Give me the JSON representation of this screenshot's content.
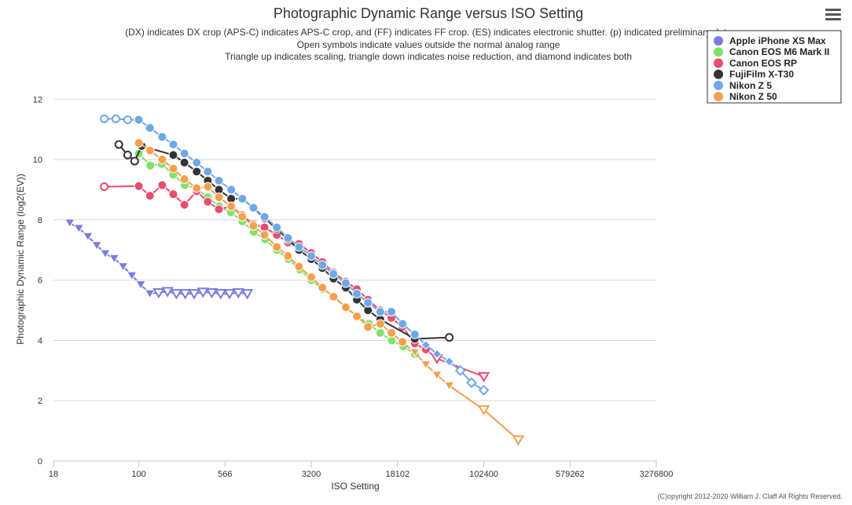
{
  "chart_data": {
    "type": "line",
    "title": "Photographic Dynamic Range versus ISO Setting",
    "subtitle": [
      "(DX) indicates DX crop (APS-C) indicates APS-C crop, and (FF) indicates FF crop. (ES) indicates electronic shutter. (p) indicated preliminary data",
      "Open symbols indicate values outside the normal analog range",
      "Triangle up indicates scaling, triangle down indicates noise reduction, and diamond indicates both"
    ],
    "xlabel": "ISO Setting",
    "ylabel": "Photographic Dynamic Range (log2(EV))",
    "x_scale": "log",
    "xlim": [
      18,
      3276800
    ],
    "ylim": [
      0,
      13
    ],
    "x_ticks": [
      "18",
      "100",
      "566",
      "3200",
      "18102",
      "102400",
      "579262",
      "3276800"
    ],
    "y_ticks": [
      0,
      2,
      4,
      6,
      8,
      10,
      12
    ],
    "grid": true,
    "legend_position": "top-right",
    "credit": "(C)opyright 2012-2020 William J. Claff All Rights Reserved.",
    "series": [
      {
        "name": "Apple iPhone XS Max",
        "color": "#7b7bdf",
        "points": [
          {
            "x": 25,
            "y": 7.9,
            "m": "td"
          },
          {
            "x": 30,
            "y": 7.72,
            "m": "td"
          },
          {
            "x": 36,
            "y": 7.45,
            "m": "td"
          },
          {
            "x": 43,
            "y": 7.15,
            "m": "td"
          },
          {
            "x": 51,
            "y": 6.88,
            "m": "td"
          },
          {
            "x": 61,
            "y": 6.72,
            "m": "td"
          },
          {
            "x": 73,
            "y": 6.45,
            "m": "td"
          },
          {
            "x": 87,
            "y": 6.15,
            "m": "td"
          },
          {
            "x": 104,
            "y": 5.85,
            "m": "td"
          },
          {
            "x": 125,
            "y": 5.55,
            "m": "td"
          },
          {
            "x": 149,
            "y": 5.58,
            "m": "tdo"
          },
          {
            "x": 178,
            "y": 5.62,
            "m": "tdo"
          },
          {
            "x": 213,
            "y": 5.55,
            "m": "tdo"
          },
          {
            "x": 254,
            "y": 5.55,
            "m": "tdo"
          },
          {
            "x": 304,
            "y": 5.55,
            "m": "tdo"
          },
          {
            "x": 363,
            "y": 5.6,
            "m": "tdo"
          },
          {
            "x": 433,
            "y": 5.58,
            "m": "tdo"
          },
          {
            "x": 518,
            "y": 5.55,
            "m": "tdo"
          },
          {
            "x": 619,
            "y": 5.55,
            "m": "tdo"
          },
          {
            "x": 739,
            "y": 5.58,
            "m": "tdo"
          },
          {
            "x": 883,
            "y": 5.55,
            "m": "tdo"
          }
        ]
      },
      {
        "name": "Canon EOS M6 Mark II",
        "color": "#80e268",
        "points": [
          {
            "x": 100,
            "y": 10.2,
            "m": "c"
          },
          {
            "x": 126,
            "y": 9.8,
            "m": "c"
          },
          {
            "x": 159,
            "y": 9.85,
            "m": "c"
          },
          {
            "x": 200,
            "y": 9.5,
            "m": "c"
          },
          {
            "x": 252,
            "y": 9.15,
            "m": "c"
          },
          {
            "x": 317,
            "y": 9.05,
            "m": "c"
          },
          {
            "x": 400,
            "y": 8.75,
            "m": "c"
          },
          {
            "x": 504,
            "y": 8.45,
            "m": "c"
          },
          {
            "x": 635,
            "y": 8.25,
            "m": "c"
          },
          {
            "x": 800,
            "y": 7.95,
            "m": "c"
          },
          {
            "x": 1008,
            "y": 7.6,
            "m": "c"
          },
          {
            "x": 1270,
            "y": 7.35,
            "m": "c"
          },
          {
            "x": 1600,
            "y": 7.0,
            "m": "c"
          },
          {
            "x": 2016,
            "y": 6.7,
            "m": "c"
          },
          {
            "x": 2540,
            "y": 6.35,
            "m": "c"
          },
          {
            "x": 3200,
            "y": 6.0,
            "m": "c"
          },
          {
            "x": 4032,
            "y": 5.7,
            "m": "c"
          },
          {
            "x": 5080,
            "y": 5.45,
            "m": "c"
          },
          {
            "x": 6400,
            "y": 5.1,
            "m": "c"
          },
          {
            "x": 8063,
            "y": 4.8,
            "m": "c"
          },
          {
            "x": 10159,
            "y": 4.55,
            "m": "c"
          },
          {
            "x": 12800,
            "y": 4.25,
            "m": "c"
          },
          {
            "x": 16127,
            "y": 4.0,
            "m": "c"
          },
          {
            "x": 20319,
            "y": 3.8,
            "m": "c"
          },
          {
            "x": 25600,
            "y": 3.55,
            "m": "c"
          }
        ]
      },
      {
        "name": "Canon EOS RP",
        "color": "#e84c6e",
        "points": [
          {
            "x": 50,
            "y": 9.1,
            "m": "co"
          },
          {
            "x": 100,
            "y": 9.12,
            "m": "c"
          },
          {
            "x": 125,
            "y": 8.8,
            "m": "c"
          },
          {
            "x": 160,
            "y": 9.15,
            "m": "c"
          },
          {
            "x": 200,
            "y": 8.85,
            "m": "c"
          },
          {
            "x": 250,
            "y": 8.5,
            "m": "c"
          },
          {
            "x": 320,
            "y": 8.95,
            "m": "c"
          },
          {
            "x": 400,
            "y": 8.6,
            "m": "c"
          },
          {
            "x": 500,
            "y": 8.35,
            "m": "c"
          },
          {
            "x": 640,
            "y": 8.45,
            "m": "c"
          },
          {
            "x": 800,
            "y": 8.15,
            "m": "c"
          },
          {
            "x": 1000,
            "y": 7.85,
            "m": "c"
          },
          {
            "x": 1250,
            "y": 7.75,
            "m": "c"
          },
          {
            "x": 1600,
            "y": 7.5,
            "m": "c"
          },
          {
            "x": 2000,
            "y": 7.25,
            "m": "c"
          },
          {
            "x": 2500,
            "y": 7.2,
            "m": "c"
          },
          {
            "x": 3200,
            "y": 6.9,
            "m": "c"
          },
          {
            "x": 4000,
            "y": 6.6,
            "m": "c"
          },
          {
            "x": 5000,
            "y": 6.25,
            "m": "c"
          },
          {
            "x": 6400,
            "y": 5.95,
            "m": "c"
          },
          {
            "x": 8000,
            "y": 5.7,
            "m": "c"
          },
          {
            "x": 10000,
            "y": 5.35,
            "m": "c"
          },
          {
            "x": 12800,
            "y": 5.0,
            "m": "c"
          },
          {
            "x": 16000,
            "y": 4.75,
            "m": "c"
          },
          {
            "x": 20000,
            "y": 4.45,
            "m": "c"
          },
          {
            "x": 25600,
            "y": 3.9,
            "m": "c"
          },
          {
            "x": 32000,
            "y": 3.7,
            "m": "c"
          },
          {
            "x": 40000,
            "y": 3.4,
            "m": "tdo"
          },
          {
            "x": 102400,
            "y": 2.8,
            "m": "tdo"
          }
        ]
      },
      {
        "name": "FujiFilm X-T30",
        "color": "#333333",
        "points": [
          {
            "x": 67,
            "y": 10.5,
            "m": "co"
          },
          {
            "x": 80,
            "y": 10.15,
            "m": "co"
          },
          {
            "x": 92,
            "y": 9.95,
            "m": "co"
          },
          {
            "x": 106,
            "y": 10.45,
            "m": "c"
          },
          {
            "x": 200,
            "y": 10.15,
            "m": "c"
          },
          {
            "x": 250,
            "y": 9.9,
            "m": "c"
          },
          {
            "x": 320,
            "y": 9.6,
            "m": "c"
          },
          {
            "x": 400,
            "y": 9.3,
            "m": "c"
          },
          {
            "x": 500,
            "y": 9.0,
            "m": "c"
          },
          {
            "x": 640,
            "y": 8.7,
            "m": "c"
          },
          {
            "x": 800,
            "y": 8.7,
            "m": "c"
          },
          {
            "x": 1000,
            "y": 8.4,
            "m": "c"
          },
          {
            "x": 1250,
            "y": 8.05,
            "m": "c"
          },
          {
            "x": 1600,
            "y": 7.7,
            "m": "c"
          },
          {
            "x": 2000,
            "y": 7.35,
            "m": "c"
          },
          {
            "x": 2500,
            "y": 7.0,
            "m": "c"
          },
          {
            "x": 3200,
            "y": 6.7,
            "m": "c"
          },
          {
            "x": 4000,
            "y": 6.4,
            "m": "c"
          },
          {
            "x": 5000,
            "y": 6.05,
            "m": "c"
          },
          {
            "x": 6400,
            "y": 5.75,
            "m": "c"
          },
          {
            "x": 8000,
            "y": 5.35,
            "m": "c"
          },
          {
            "x": 10000,
            "y": 5.0,
            "m": "c"
          },
          {
            "x": 12800,
            "y": 4.7,
            "m": "c"
          },
          {
            "x": 25600,
            "y": 4.05,
            "m": "c"
          },
          {
            "x": 51200,
            "y": 4.1,
            "m": "co"
          }
        ]
      },
      {
        "name": "Nikon Z 5",
        "color": "#6ea8e6",
        "points": [
          {
            "x": 50,
            "y": 11.35,
            "m": "co"
          },
          {
            "x": 63,
            "y": 11.35,
            "m": "co"
          },
          {
            "x": 80,
            "y": 11.32,
            "m": "co"
          },
          {
            "x": 100,
            "y": 11.32,
            "m": "c"
          },
          {
            "x": 125,
            "y": 11.05,
            "m": "c"
          },
          {
            "x": 160,
            "y": 10.75,
            "m": "c"
          },
          {
            "x": 200,
            "y": 10.5,
            "m": "c"
          },
          {
            "x": 250,
            "y": 10.2,
            "m": "c"
          },
          {
            "x": 320,
            "y": 9.9,
            "m": "c"
          },
          {
            "x": 400,
            "y": 9.6,
            "m": "c"
          },
          {
            "x": 500,
            "y": 9.3,
            "m": "c"
          },
          {
            "x": 640,
            "y": 9.0,
            "m": "c"
          },
          {
            "x": 800,
            "y": 8.7,
            "m": "c"
          },
          {
            "x": 1000,
            "y": 8.4,
            "m": "c"
          },
          {
            "x": 1250,
            "y": 8.1,
            "m": "c"
          },
          {
            "x": 1600,
            "y": 7.75,
            "m": "c"
          },
          {
            "x": 2000,
            "y": 7.4,
            "m": "c"
          },
          {
            "x": 2500,
            "y": 7.1,
            "m": "c"
          },
          {
            "x": 3200,
            "y": 6.8,
            "m": "c"
          },
          {
            "x": 4000,
            "y": 6.5,
            "m": "c"
          },
          {
            "x": 5000,
            "y": 6.2,
            "m": "c"
          },
          {
            "x": 6400,
            "y": 5.9,
            "m": "c"
          },
          {
            "x": 8000,
            "y": 5.55,
            "m": "c"
          },
          {
            "x": 10000,
            "y": 5.25,
            "m": "c"
          },
          {
            "x": 12800,
            "y": 4.95,
            "m": "c"
          },
          {
            "x": 16000,
            "y": 4.95,
            "m": "c"
          },
          {
            "x": 20000,
            "y": 4.55,
            "m": "c"
          },
          {
            "x": 25600,
            "y": 4.2,
            "m": "c"
          },
          {
            "x": 32000,
            "y": 3.85,
            "m": "d"
          },
          {
            "x": 40000,
            "y": 3.55,
            "m": "d"
          },
          {
            "x": 51200,
            "y": 3.3,
            "m": "d"
          },
          {
            "x": 64000,
            "y": 3.0,
            "m": "do"
          },
          {
            "x": 80000,
            "y": 2.6,
            "m": "do"
          },
          {
            "x": 102400,
            "y": 2.35,
            "m": "do"
          }
        ]
      },
      {
        "name": "Nikon Z 50",
        "color": "#f5a04f",
        "points": [
          {
            "x": 100,
            "y": 10.55,
            "m": "c"
          },
          {
            "x": 125,
            "y": 10.3,
            "m": "c"
          },
          {
            "x": 160,
            "y": 10.0,
            "m": "c"
          },
          {
            "x": 200,
            "y": 9.7,
            "m": "c"
          },
          {
            "x": 250,
            "y": 9.35,
            "m": "c"
          },
          {
            "x": 320,
            "y": 9.05,
            "m": "c"
          },
          {
            "x": 400,
            "y": 9.1,
            "m": "c"
          },
          {
            "x": 500,
            "y": 8.75,
            "m": "c"
          },
          {
            "x": 640,
            "y": 8.45,
            "m": "c"
          },
          {
            "x": 800,
            "y": 8.1,
            "m": "c"
          },
          {
            "x": 1000,
            "y": 7.8,
            "m": "c"
          },
          {
            "x": 1250,
            "y": 7.5,
            "m": "c"
          },
          {
            "x": 1600,
            "y": 7.1,
            "m": "c"
          },
          {
            "x": 2000,
            "y": 6.8,
            "m": "c"
          },
          {
            "x": 2500,
            "y": 6.45,
            "m": "c"
          },
          {
            "x": 3200,
            "y": 6.1,
            "m": "c"
          },
          {
            "x": 4000,
            "y": 5.75,
            "m": "c"
          },
          {
            "x": 5000,
            "y": 5.45,
            "m": "c"
          },
          {
            "x": 6400,
            "y": 5.1,
            "m": "c"
          },
          {
            "x": 8000,
            "y": 4.8,
            "m": "c"
          },
          {
            "x": 10000,
            "y": 4.45,
            "m": "c"
          },
          {
            "x": 12800,
            "y": 4.55,
            "m": "c"
          },
          {
            "x": 16000,
            "y": 4.25,
            "m": "c"
          },
          {
            "x": 20000,
            "y": 3.95,
            "m": "c"
          },
          {
            "x": 25600,
            "y": 3.6,
            "m": "td"
          },
          {
            "x": 32000,
            "y": 3.2,
            "m": "td"
          },
          {
            "x": 40000,
            "y": 2.85,
            "m": "td"
          },
          {
            "x": 51200,
            "y": 2.5,
            "m": "td"
          },
          {
            "x": 102400,
            "y": 1.7,
            "m": "tdo"
          },
          {
            "x": 204800,
            "y": 0.7,
            "m": "tdo"
          }
        ]
      }
    ]
  }
}
